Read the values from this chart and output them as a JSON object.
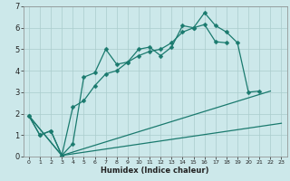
{
  "xlabel": "Humidex (Indice chaleur)",
  "background_color": "#cce8ea",
  "grid_color": "#aacccc",
  "line_color": "#1a7a6e",
  "xlim": [
    -0.5,
    23.5
  ],
  "ylim": [
    0,
    7
  ],
  "xticks": [
    0,
    1,
    2,
    3,
    4,
    5,
    6,
    7,
    8,
    9,
    10,
    11,
    12,
    13,
    14,
    15,
    16,
    17,
    18,
    19,
    20,
    21,
    22,
    23
  ],
  "yticks": [
    0,
    1,
    2,
    3,
    4,
    5,
    6,
    7
  ],
  "series1_x": [
    0,
    1,
    2,
    3,
    4,
    5,
    6,
    7,
    8,
    9,
    10,
    11,
    12,
    13,
    14,
    15,
    16,
    17,
    18,
    19,
    20,
    21
  ],
  "series1_y": [
    1.9,
    1.0,
    1.2,
    0.05,
    0.6,
    3.7,
    3.9,
    5.0,
    4.3,
    4.4,
    5.0,
    5.1,
    4.7,
    5.1,
    6.1,
    6.0,
    6.7,
    6.1,
    5.8,
    5.3,
    3.0,
    3.05
  ],
  "series2_x": [
    0,
    1,
    2,
    3,
    4,
    5,
    6,
    7,
    8,
    9,
    10,
    11,
    12,
    13,
    14,
    15,
    16,
    17,
    18
  ],
  "series2_y": [
    1.9,
    1.0,
    1.2,
    0.05,
    2.3,
    2.6,
    3.3,
    3.85,
    4.0,
    4.4,
    4.7,
    4.9,
    5.0,
    5.3,
    5.8,
    6.0,
    6.15,
    5.35,
    5.3
  ],
  "series3_x": [
    0,
    3,
    23
  ],
  "series3_y": [
    1.9,
    0.05,
    1.55
  ],
  "series4_x": [
    0,
    3,
    22
  ],
  "series4_y": [
    1.9,
    0.05,
    3.05
  ],
  "marker_size": 2.5,
  "line_width": 0.9,
  "xlabel_fontsize": 6.0,
  "tick_fontsize_x": 4.5,
  "tick_fontsize_y": 6.0
}
